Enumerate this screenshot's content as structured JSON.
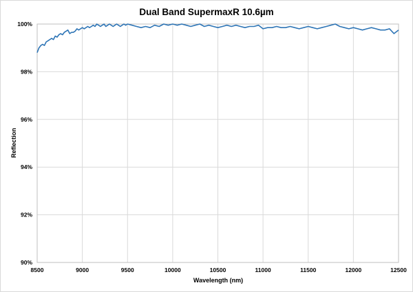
{
  "chart_data": {
    "type": "line",
    "title": "Dual Band SupermaxR 10.6µm",
    "xlabel": "Wavelength (nm)",
    "ylabel": "Reflection",
    "xlim": [
      8500,
      12500
    ],
    "ylim": [
      90,
      100
    ],
    "x_ticks": [
      "8500",
      "9000",
      "9500",
      "10000",
      "10500",
      "11000",
      "11500",
      "12000",
      "12500"
    ],
    "y_ticks": [
      "90%",
      "92%",
      "94%",
      "96%",
      "98%",
      "100%"
    ],
    "grid": true,
    "line_color": "#2e75b6",
    "series": [
      {
        "x": [
          8500,
          8520,
          8540,
          8560,
          8580,
          8600,
          8620,
          8640,
          8660,
          8680,
          8700,
          8720,
          8740,
          8760,
          8780,
          8800,
          8820,
          8840,
          8860,
          8880,
          8900,
          8920,
          8940,
          8960,
          8980,
          9000,
          9020,
          9040,
          9060,
          9080,
          9100,
          9120,
          9140,
          9160,
          9180,
          9200,
          9220,
          9240,
          9260,
          9280,
          9300,
          9320,
          9340,
          9360,
          9380,
          9400,
          9420,
          9440,
          9460,
          9480,
          9500,
          9550,
          9600,
          9650,
          9700,
          9750,
          9800,
          9850,
          9900,
          9950,
          10000,
          10050,
          10100,
          10150,
          10200,
          10250,
          10300,
          10350,
          10400,
          10450,
          10500,
          10550,
          10600,
          10650,
          10700,
          10750,
          10800,
          10850,
          10900,
          10950,
          11000,
          11050,
          11100,
          11150,
          11200,
          11250,
          11300,
          11350,
          11400,
          11450,
          11500,
          11550,
          11600,
          11650,
          11700,
          11750,
          11800,
          11850,
          11900,
          11950,
          12000,
          12050,
          12100,
          12150,
          12200,
          12250,
          12300,
          12350,
          12400,
          12450,
          12500
        ],
        "y": [
          98.8,
          99.0,
          99.1,
          99.15,
          99.1,
          99.25,
          99.3,
          99.35,
          99.4,
          99.35,
          99.5,
          99.45,
          99.55,
          99.6,
          99.55,
          99.65,
          99.7,
          99.75,
          99.6,
          99.65,
          99.65,
          99.7,
          99.8,
          99.75,
          99.8,
          99.85,
          99.8,
          99.85,
          99.9,
          99.85,
          99.9,
          99.95,
          99.9,
          100.0,
          99.95,
          99.9,
          99.95,
          100.0,
          99.9,
          99.95,
          100.0,
          99.95,
          99.9,
          99.95,
          100.0,
          99.95,
          99.9,
          99.95,
          100.0,
          99.95,
          100.0,
          99.95,
          99.9,
          99.85,
          99.9,
          99.85,
          99.95,
          99.9,
          100.0,
          99.95,
          100.0,
          99.95,
          100.0,
          99.95,
          99.9,
          99.95,
          100.0,
          99.9,
          99.95,
          99.9,
          99.85,
          99.9,
          99.95,
          99.9,
          99.95,
          99.9,
          99.85,
          99.9,
          99.9,
          99.95,
          99.8,
          99.85,
          99.85,
          99.9,
          99.85,
          99.85,
          99.9,
          99.85,
          99.8,
          99.85,
          99.9,
          99.85,
          99.8,
          99.85,
          99.9,
          99.95,
          100.0,
          99.9,
          99.85,
          99.8,
          99.85,
          99.8,
          99.75,
          99.8,
          99.85,
          99.8,
          99.75,
          99.75,
          99.8,
          99.6,
          99.75
        ]
      }
    ]
  }
}
